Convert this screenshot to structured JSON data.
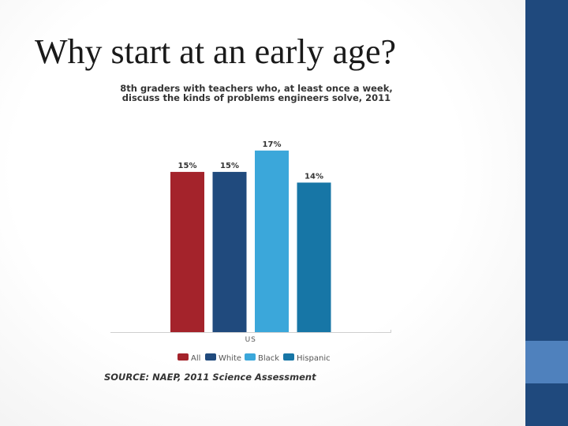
{
  "slide": {
    "title": "Why start at an early age?",
    "colors": {
      "sidebar": "#1f497d",
      "sidebar_accent": "#4f81bd"
    }
  },
  "source": "SOURCE: NAEP, 2011 Science Assessment",
  "chart_data": {
    "type": "bar",
    "title": "8th graders with teachers who, at least once a week, discuss the kinds of problems engineers solve, 2011",
    "categories": [
      "US"
    ],
    "series": [
      {
        "name": "All",
        "values": [
          15
        ],
        "label": "15%",
        "color": "#a4232b"
      },
      {
        "name": "White",
        "values": [
          15
        ],
        "label": "15%",
        "color": "#204a7d"
      },
      {
        "name": "Black",
        "values": [
          17
        ],
        "label": "17%",
        "color": "#3ba7da"
      },
      {
        "name": "Hispanic",
        "values": [
          14
        ],
        "label": "14%",
        "color": "#1776a6"
      }
    ],
    "xlabel": "",
    "ylabel": "",
    "ylim": [
      0,
      17.8
    ],
    "grid": false,
    "legend_position": "bottom"
  }
}
